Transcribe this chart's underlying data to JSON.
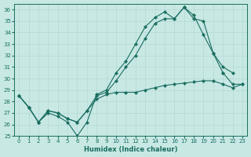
{
  "xlabel": "Humidex (Indice chaleur)",
  "xlim": [
    -0.5,
    23.5
  ],
  "ylim": [
    25,
    36.5
  ],
  "yticks": [
    25,
    26,
    27,
    28,
    29,
    30,
    31,
    32,
    33,
    34,
    35,
    36
  ],
  "xticks": [
    0,
    1,
    2,
    3,
    4,
    5,
    6,
    7,
    8,
    9,
    10,
    11,
    12,
    13,
    14,
    15,
    16,
    17,
    18,
    19,
    20,
    21,
    22,
    23
  ],
  "bg_color": "#c8e8e4",
  "line_color": "#1a6e60",
  "grid_color": "#b8dcd8",
  "line1_y": [
    28.5,
    27.5,
    26.2,
    27.0,
    26.7,
    26.2,
    25.0,
    26.2,
    28.6,
    29.0,
    30.5,
    31.5,
    33.0,
    34.5,
    35.3,
    35.8,
    35.2,
    36.2,
    35.5,
    33.8,
    32.2,
    30.5,
    null,
    null
  ],
  "line2_y": [
    28.5,
    27.5,
    26.2,
    27.2,
    27.0,
    26.5,
    26.2,
    27.2,
    28.5,
    28.8,
    29.8,
    31.0,
    32.0,
    33.5,
    34.8,
    35.2,
    35.2,
    36.2,
    35.2,
    35.0,
    32.2,
    31.0,
    30.5,
    null
  ],
  "line3_y": [
    28.5,
    27.5,
    26.2,
    27.2,
    27.0,
    26.5,
    26.2,
    27.2,
    28.2,
    28.6,
    28.8,
    28.8,
    28.8,
    29.0,
    29.2,
    29.4,
    29.5,
    29.6,
    29.7,
    29.8,
    29.8,
    29.5,
    29.2,
    29.5
  ],
  "line4_y": [
    null,
    null,
    null,
    null,
    null,
    null,
    null,
    null,
    null,
    null,
    null,
    null,
    null,
    null,
    null,
    null,
    null,
    null,
    null,
    null,
    null,
    30.5,
    29.5,
    29.5
  ]
}
